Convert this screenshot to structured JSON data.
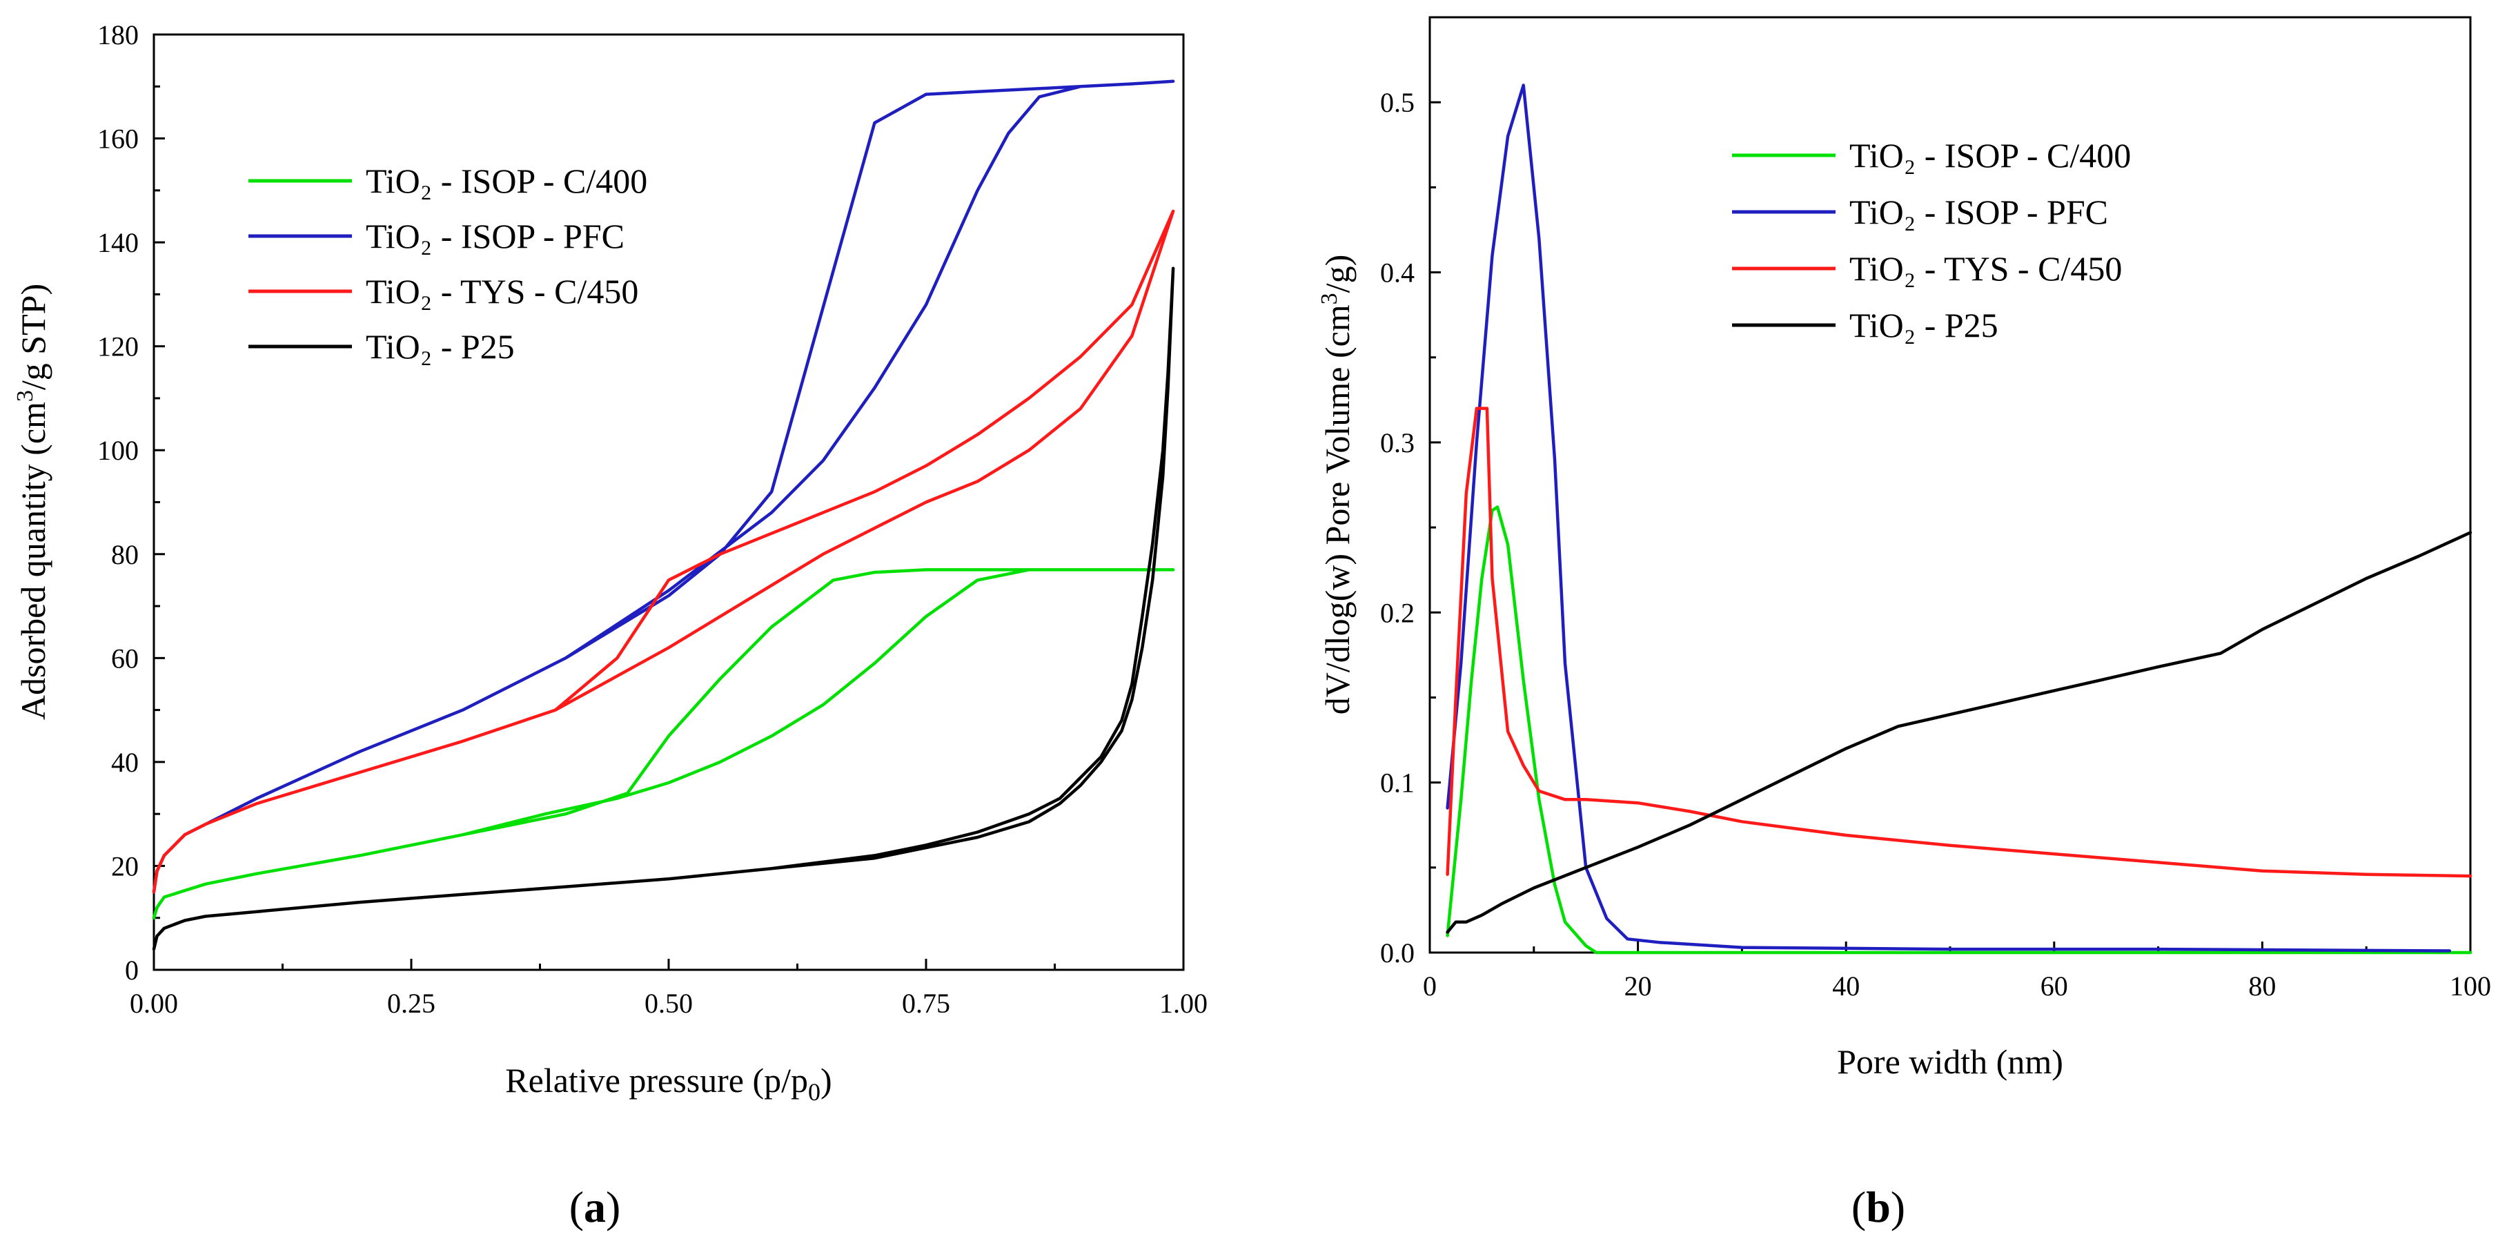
{
  "panel_labels": {
    "a": {
      "open": "(",
      "letter": "a",
      "close": ")"
    },
    "b": {
      "open": "(",
      "letter": "b",
      "close": ")"
    }
  },
  "legend": {
    "entries": [
      {
        "label": "TiO₂ - ISOP - C/400",
        "color": "#00e000"
      },
      {
        "label": "TiO₂ - ISOP - PFC",
        "color": "#1f1fbf"
      },
      {
        "label": "TiO₂ - TYS - C/450",
        "color": "#ff1a1a"
      },
      {
        "label": "TiO₂ - P25",
        "color": "#000000"
      }
    ]
  },
  "chart_data": [
    {
      "type": "line",
      "title": "",
      "panel": "(a)",
      "xlabel": "Relative pressure (p/p₀)",
      "ylabel": "Adsorbed quantity (cm³/g STP)",
      "xlim": [
        0,
        1.0
      ],
      "ylim": [
        0,
        180
      ],
      "xticks": [
        "0.00",
        "0.25",
        "0.50",
        "0.75",
        "1.00"
      ],
      "yticks": [
        "0",
        "20",
        "40",
        "60",
        "80",
        "100",
        "120",
        "140",
        "160",
        "180"
      ],
      "grid": false,
      "legend_position": "top-left",
      "series": [
        {
          "name": "TiO₂ - ISOP - C/400",
          "color": "#00e000",
          "x": [
            0.0,
            0.003,
            0.01,
            0.05,
            0.1,
            0.2,
            0.3,
            0.38,
            0.45,
            0.5,
            0.55,
            0.6,
            0.65,
            0.7,
            0.75,
            0.8,
            0.85,
            0.9,
            0.95,
            0.99,
            0.99,
            0.95,
            0.9,
            0.85,
            0.82,
            0.75,
            0.7,
            0.66,
            0.6,
            0.55,
            0.5,
            0.46,
            0.4,
            0.3,
            0.2,
            0.1,
            0.05,
            0.01,
            0.003,
            0.0
          ],
          "y": [
            10,
            12,
            14,
            16.5,
            18.5,
            22,
            26,
            30,
            33,
            36,
            40,
            45,
            51,
            59,
            68,
            75,
            77,
            77,
            77,
            77,
            77,
            77,
            77,
            77,
            77,
            77,
            76.5,
            75,
            66,
            56,
            45,
            34,
            30,
            26,
            22,
            18.5,
            16.5,
            14,
            12,
            10
          ]
        },
        {
          "name": "TiO₂ - ISOP - PFC",
          "color": "#1f1fbf",
          "x": [
            0.0,
            0.003,
            0.01,
            0.03,
            0.05,
            0.1,
            0.2,
            0.3,
            0.4,
            0.5,
            0.6,
            0.65,
            0.7,
            0.75,
            0.8,
            0.83,
            0.86,
            0.9,
            0.95,
            0.99,
            0.99,
            0.95,
            0.9,
            0.85,
            0.8,
            0.75,
            0.7,
            0.6,
            0.55,
            0.5,
            0.4,
            0.3,
            0.2,
            0.1,
            0.05,
            0.03,
            0.01,
            0.003,
            0.0
          ],
          "y": [
            15,
            19,
            22,
            26,
            28,
            33,
            42,
            50,
            60,
            73,
            88,
            98,
            112,
            128,
            150,
            161,
            168,
            170,
            170.5,
            171,
            171,
            170.5,
            170,
            169.5,
            169,
            168.5,
            163,
            92,
            80,
            72,
            60,
            50,
            42,
            33,
            28,
            26,
            22,
            19,
            15
          ]
        },
        {
          "name": "TiO₂ - TYS - C/450",
          "color": "#ff1a1a",
          "x": [
            0.0,
            0.003,
            0.01,
            0.03,
            0.05,
            0.1,
            0.2,
            0.3,
            0.39,
            0.5,
            0.6,
            0.65,
            0.7,
            0.75,
            0.8,
            0.85,
            0.9,
            0.95,
            0.99,
            0.99,
            0.95,
            0.9,
            0.85,
            0.8,
            0.75,
            0.7,
            0.65,
            0.6,
            0.55,
            0.5,
            0.45,
            0.39,
            0.3,
            0.2,
            0.1,
            0.05,
            0.03,
            0.01,
            0.003,
            0.0
          ],
          "y": [
            15,
            19,
            22,
            26,
            28,
            32,
            38,
            44,
            50,
            62,
            74,
            80,
            85,
            90,
            94,
            100,
            108,
            122,
            146,
            146,
            128,
            118,
            110,
            103,
            97,
            92,
            88,
            84,
            80,
            75,
            60,
            50,
            44,
            38,
            32,
            28,
            26,
            22,
            19,
            15
          ]
        },
        {
          "name": "TiO₂ - P25",
          "color": "#000000",
          "x": [
            0.0,
            0.003,
            0.01,
            0.03,
            0.05,
            0.1,
            0.2,
            0.3,
            0.4,
            0.5,
            0.6,
            0.7,
            0.75,
            0.8,
            0.85,
            0.88,
            0.9,
            0.92,
            0.94,
            0.95,
            0.96,
            0.97,
            0.98,
            0.985,
            0.99,
            0.99,
            0.985,
            0.98,
            0.97,
            0.96,
            0.95,
            0.94,
            0.92,
            0.9,
            0.88,
            0.85,
            0.8,
            0.75,
            0.7,
            0.6,
            0.5,
            0.4,
            0.3,
            0.2,
            0.1,
            0.05,
            0.03,
            0.01,
            0.003,
            0.0
          ],
          "y": [
            4,
            6.5,
            8,
            9.5,
            10.3,
            11.2,
            13,
            14.5,
            16,
            17.5,
            19.5,
            22,
            24,
            26.5,
            30,
            33,
            37,
            41,
            48,
            55,
            68,
            82,
            100,
            115,
            135,
            135,
            112,
            95,
            75,
            62,
            52,
            46,
            40,
            35.5,
            32,
            28.5,
            25.5,
            23.5,
            21.5,
            19.5,
            17.5,
            16,
            14.5,
            13,
            11.2,
            10.3,
            9.5,
            8,
            6.5,
            4
          ]
        }
      ]
    },
    {
      "type": "line",
      "title": "",
      "panel": "(b)",
      "xlabel": "Pore width (nm)",
      "ylabel": "dV/dlog(w) Pore Volume (cm³/g)",
      "xlim": [
        0,
        100
      ],
      "ylim": [
        0,
        0.55
      ],
      "xticks": [
        "0",
        "20",
        "40",
        "60",
        "80",
        "100"
      ],
      "yticks": [
        "0.0",
        "0.1",
        "0.2",
        "0.3",
        "0.4",
        "0.5"
      ],
      "grid": false,
      "legend_position": "top-right",
      "series": [
        {
          "name": "TiO₂ - ISOP - C/400",
          "color": "#00e000",
          "x": [
            1.7,
            3,
            4,
            5,
            6,
            6.5,
            7.5,
            9,
            10.5,
            12,
            13,
            15,
            16,
            20,
            30,
            50,
            70,
            100
          ],
          "y": [
            0.01,
            0.09,
            0.16,
            0.22,
            0.26,
            0.262,
            0.24,
            0.16,
            0.09,
            0.04,
            0.018,
            0.004,
            0.0,
            0.0,
            0.0,
            0.0,
            0.0,
            0.0
          ]
        },
        {
          "name": "TiO₂ - ISOP - PFC",
          "color": "#1f1fbf",
          "x": [
            1.7,
            3,
            4.5,
            6,
            7.5,
            9,
            10.5,
            12,
            13,
            15,
            17,
            19,
            22,
            30,
            50,
            70,
            98
          ],
          "y": [
            0.085,
            0.17,
            0.3,
            0.41,
            0.48,
            0.51,
            0.42,
            0.29,
            0.17,
            0.05,
            0.02,
            0.008,
            0.006,
            0.003,
            0.002,
            0.002,
            0.001
          ]
        },
        {
          "name": "TiO₂ - TYS - C/450",
          "color": "#ff1a1a",
          "x": [
            1.7,
            2.5,
            3.5,
            4.5,
            5.5,
            6,
            7.5,
            9,
            10.5,
            13,
            15,
            20,
            25,
            30,
            40,
            50,
            60,
            70,
            80,
            90,
            100
          ],
          "y": [
            0.046,
            0.15,
            0.27,
            0.32,
            0.32,
            0.22,
            0.13,
            0.11,
            0.095,
            0.09,
            0.09,
            0.088,
            0.083,
            0.077,
            0.069,
            0.063,
            0.058,
            0.053,
            0.048,
            0.046,
            0.045
          ]
        },
        {
          "name": "TiO₂ - P25",
          "color": "#000000",
          "x": [
            1.7,
            2.5,
            3.5,
            5,
            7,
            10,
            15,
            20,
            25,
            30,
            35,
            40,
            45,
            50,
            55,
            60,
            65,
            70,
            76,
            80,
            85,
            90,
            95,
            100
          ],
          "y": [
            0.012,
            0.018,
            0.018,
            0.022,
            0.029,
            0.038,
            0.05,
            0.062,
            0.075,
            0.09,
            0.105,
            0.12,
            0.133,
            0.14,
            0.147,
            0.154,
            0.161,
            0.168,
            0.176,
            0.19,
            0.205,
            0.22,
            0.233,
            0.247
          ]
        }
      ]
    }
  ]
}
